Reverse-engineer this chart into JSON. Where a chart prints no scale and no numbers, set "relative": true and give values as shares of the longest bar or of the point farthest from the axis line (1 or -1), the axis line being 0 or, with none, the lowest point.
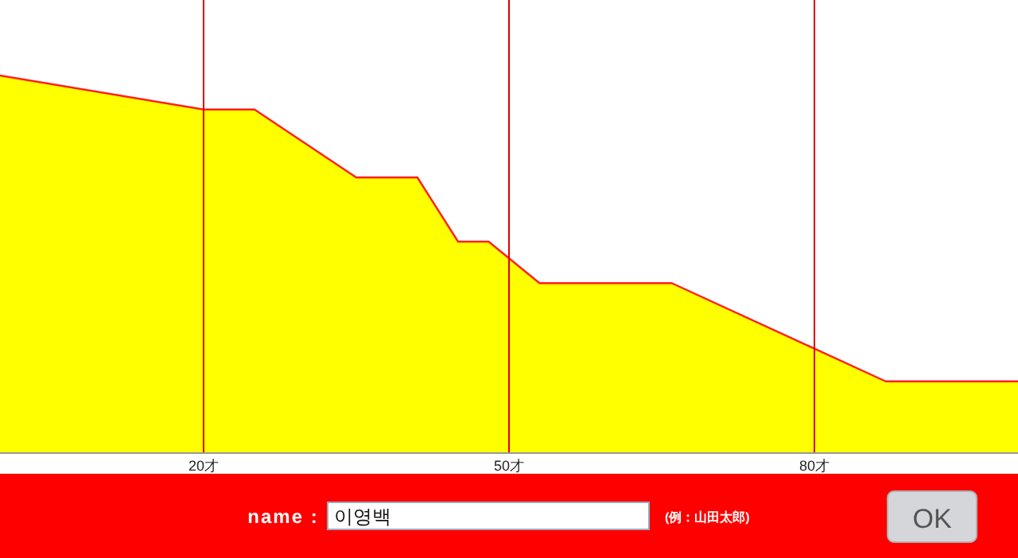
{
  "chart_data": {
    "type": "area",
    "relative": true,
    "x": [
      0,
      20,
      25,
      35,
      41,
      45,
      48,
      53,
      66,
      87,
      100
    ],
    "series": [
      {
        "color": "#ffff00",
        "values": [
          1,
          0.91,
          0.91,
          0.73,
          0.73,
          0.56,
          0.56,
          0.45,
          0.45,
          0.19,
          0.19
        ]
      }
    ],
    "xlim": [
      0,
      100
    ],
    "xticks": [
      {
        "value": 20,
        "label": "20才"
      },
      {
        "value": 50,
        "label": "50才"
      },
      {
        "value": 80,
        "label": "80才"
      }
    ],
    "grid": "x",
    "annotations": [
      "name :",
      "이영백",
      "(例：山田太郎)",
      "OK"
    ]
  }
}
